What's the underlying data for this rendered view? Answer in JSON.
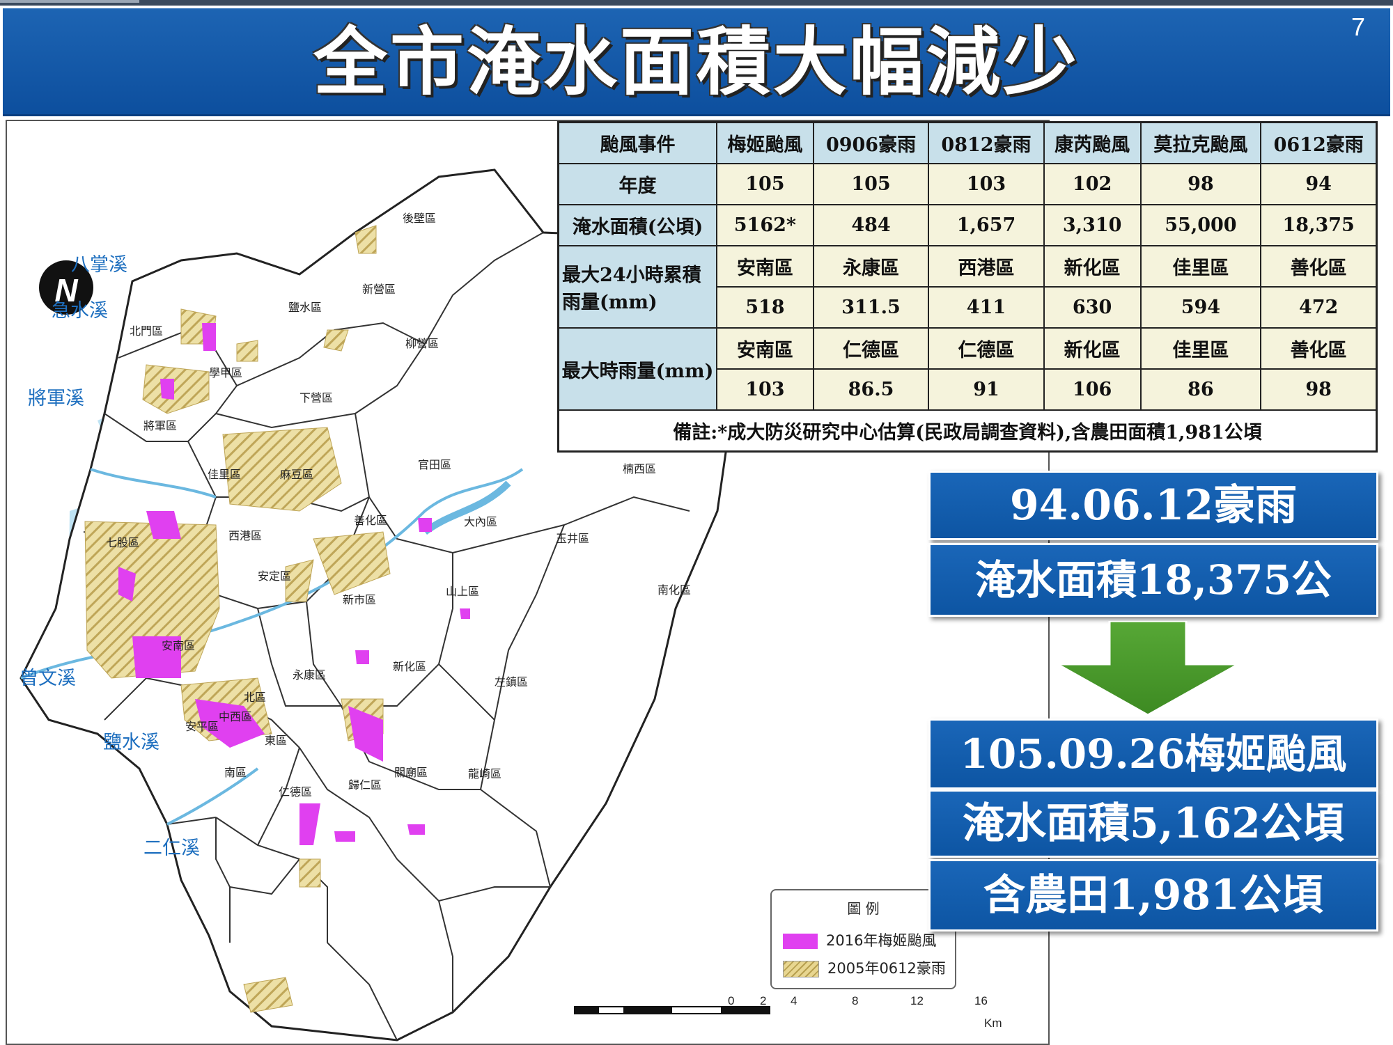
{
  "page": {
    "number": "7",
    "title": "全市淹水面積大幅減少"
  },
  "table": {
    "header_label": "颱風事件",
    "events": [
      "梅姬颱風",
      "0906豪雨",
      "0812豪雨",
      "康芮颱風",
      "莫拉克颱風",
      "0612豪雨"
    ],
    "year_label": "年度",
    "years": [
      "105",
      "105",
      "103",
      "102",
      "98",
      "94"
    ],
    "area_label": "淹水面積(公頃)",
    "areas": [
      "5162*",
      "484",
      "1,657",
      "3,310",
      "55,000",
      "18,375"
    ],
    "rain24_label": "最大24小時累積雨量(mm)",
    "rain24_districts": [
      "安南區",
      "永康區",
      "西港區",
      "新化區",
      "佳里區",
      "善化區"
    ],
    "rain24_values": [
      "518",
      "311.5",
      "411",
      "630",
      "594",
      "472"
    ],
    "hourly_label": "最大時雨量(mm)",
    "hourly_districts": [
      "安南區",
      "仁德區",
      "仁德區",
      "新化區",
      "佳里區",
      "善化區"
    ],
    "hourly_values": [
      "103",
      "86.5",
      "91",
      "106",
      "86",
      "98"
    ],
    "note": "備註:*成大防災研究中心估算(民政局調查資料),含農田面積1,981公頃"
  },
  "callouts": {
    "before_date": "94.06.12豪雨",
    "before_area": "淹水面積18,375公",
    "after_date": "105.09.26梅姬颱風",
    "after_area": "淹水面積5,162公頃",
    "after_farmland": "含農田1,981公頃"
  },
  "map": {
    "compass": "N",
    "rivers": [
      "八掌溪",
      "急水溪",
      "將軍溪",
      "曾文溪",
      "鹽水溪",
      "二仁溪"
    ],
    "districts": [
      "後壁區",
      "新營區",
      "鹽水區",
      "柳營區",
      "北門區",
      "學甲區",
      "下營區",
      "將軍區",
      "佳里區",
      "麻豆區",
      "官田區",
      "楠西區",
      "七股區",
      "西港區",
      "善化區",
      "大內區",
      "玉井區",
      "安定區",
      "山上區",
      "新市區",
      "南化區",
      "安南區",
      "新化區",
      "永康區",
      "北區",
      "左鎮區",
      "中西區",
      "安平區",
      "東區",
      "南區",
      "仁德區",
      "歸仁區",
      "關廟區",
      "龍崎區"
    ],
    "legend_title": "圖 例",
    "legend_items": [
      "2016年梅姬颱風",
      "2005年0612豪雨"
    ],
    "scale_ticks": [
      "0",
      "2",
      "4",
      "8",
      "12",
      "16"
    ],
    "scale_unit": "Km",
    "colors": {
      "flood_2016": "#e040f0",
      "flood_2005": "#e8d690",
      "water": "#bfe3f3"
    }
  }
}
